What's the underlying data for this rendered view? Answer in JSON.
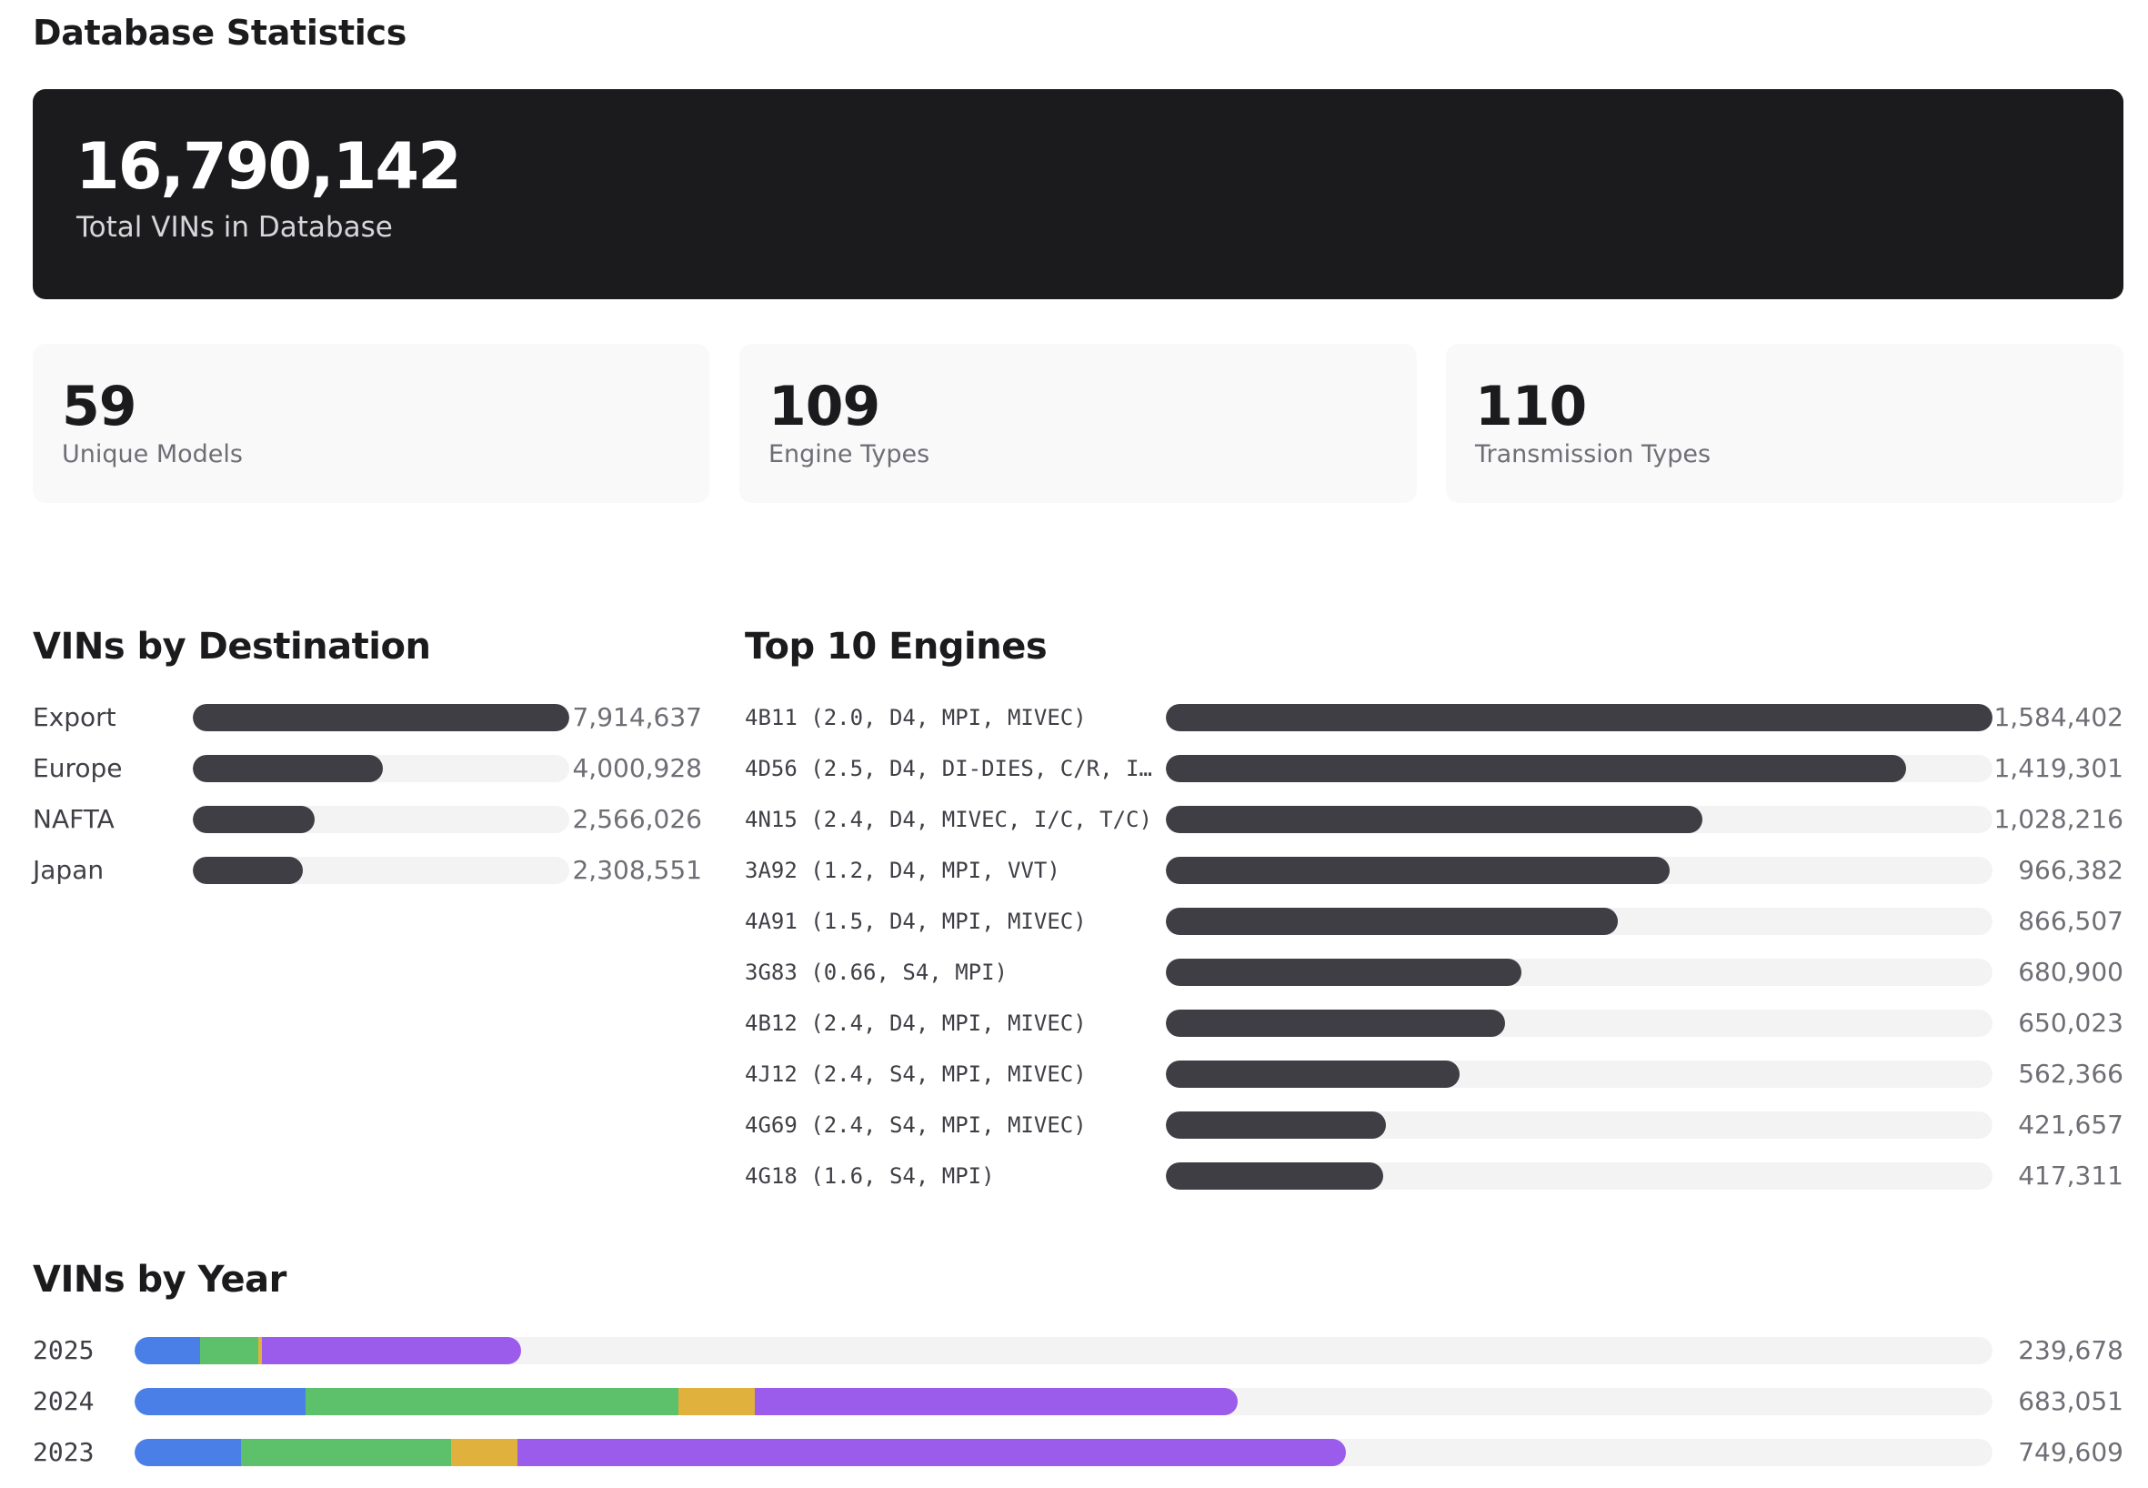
{
  "page": {
    "title": "Database Statistics"
  },
  "hero": {
    "value": "16,790,142",
    "label": "Total VINs in Database"
  },
  "stats": [
    {
      "value": "59",
      "label": "Unique Models"
    },
    {
      "value": "109",
      "label": "Engine Types"
    },
    {
      "value": "110",
      "label": "Transmission Types"
    }
  ],
  "destination": {
    "title": "VINs by Destination",
    "rows": [
      {
        "label": "Export",
        "value": "7,914,637"
      },
      {
        "label": "Europe",
        "value": "4,000,928"
      },
      {
        "label": "NAFTA",
        "value": "2,566,026"
      },
      {
        "label": "Japan",
        "value": "2,308,551"
      }
    ]
  },
  "engines": {
    "title": "Top 10 Engines",
    "rows": [
      {
        "label": "4B11 (2.0, D4, MPI, MIVEC)",
        "value": "1,584,402"
      },
      {
        "label": "4D56 (2.5, D4, DI-DIES, C/R, I…",
        "value": "1,419,301"
      },
      {
        "label": "4N15 (2.4, D4, MIVEC, I/C, T/C)",
        "value": "1,028,216"
      },
      {
        "label": "3A92 (1.2, D4, MPI, VVT)",
        "value": "966,382"
      },
      {
        "label": "4A91 (1.5, D4, MPI, MIVEC)",
        "value": "866,507"
      },
      {
        "label": "3G83 (0.66, S4, MPI)",
        "value": "680,900"
      },
      {
        "label": "4B12 (2.4, D4, MPI, MIVEC)",
        "value": "650,023"
      },
      {
        "label": "4J12 (2.4, S4, MPI, MIVEC)",
        "value": "562,366"
      },
      {
        "label": "4G69 (2.4, S4, MPI, MIVEC)",
        "value": "421,657"
      },
      {
        "label": "4G18 (1.6, S4, MPI)",
        "value": "417,311"
      }
    ]
  },
  "years": {
    "title": "VINs by Year",
    "segment_colors": [
      "#4a7fe8",
      "#5dc06a",
      "#e0b13c",
      "#9b5ceb"
    ],
    "rows": [
      {
        "label": "2025",
        "value": "239,678",
        "segments_pct": [
          3.54,
          3.1,
          0.22,
          13.93
        ]
      },
      {
        "label": "2024",
        "value": "683,051",
        "segments_pct": [
          9.21,
          20.04,
          4.13,
          26.01
        ]
      },
      {
        "label": "2023",
        "value": "749,609",
        "segments_pct": [
          5.75,
          11.27,
          3.61,
          44.58
        ]
      }
    ]
  },
  "colors": {
    "hero_bg": "#1b1b1d",
    "card_bg": "#f9f9fa",
    "bar_fill": "#3f3e45",
    "bar_track": "#f3f3f4",
    "text_primary": "#1b1b1d",
    "text_muted": "#6e6e75"
  },
  "chart_data": [
    {
      "type": "bar",
      "title": "VINs by Destination",
      "orientation": "horizontal",
      "categories": [
        "Export",
        "Europe",
        "NAFTA",
        "Japan"
      ],
      "values": [
        7914637,
        4000928,
        2566026,
        2308551
      ],
      "xlabel": "",
      "ylabel": "",
      "grid": false,
      "legend": null
    },
    {
      "type": "bar",
      "title": "Top 10 Engines",
      "orientation": "horizontal",
      "categories": [
        "4B11 (2.0, D4, MPI, MIVEC)",
        "4D56 (2.5, D4, DI-DIES, C/R, I…",
        "4N15 (2.4, D4, MIVEC, I/C, T/C)",
        "3A92 (1.2, D4, MPI, VVT)",
        "4A91 (1.5, D4, MPI, MIVEC)",
        "3G83 (0.66, S4, MPI)",
        "4B12 (2.4, D4, MPI, MIVEC)",
        "4J12 (2.4, S4, MPI, MIVEC)",
        "4G69 (2.4, S4, MPI, MIVEC)",
        "4G18 (1.6, S4, MPI)"
      ],
      "values": [
        1584402,
        1419301,
        1028216,
        966382,
        866507,
        680900,
        650023,
        562366,
        421657,
        417311
      ],
      "xlabel": "",
      "ylabel": "",
      "grid": false,
      "legend": null
    },
    {
      "type": "bar",
      "stacked": true,
      "title": "VINs by Year",
      "orientation": "horizontal",
      "categories": [
        "2025",
        "2024",
        "2023"
      ],
      "totals": [
        239678,
        683051,
        749609
      ],
      "series": [
        {
          "name": "segment-1 (blue)",
          "color": "#4a7fe8",
          "values": [
            40800,
            106100,
            66200
          ]
        },
        {
          "name": "segment-2 (green)",
          "color": "#5dc06a",
          "values": [
            35700,
            230900,
            129800
          ]
        },
        {
          "name": "segment-3 (yellow)",
          "color": "#e0b13c",
          "values": [
            2500,
            47600,
            41600
          ]
        },
        {
          "name": "segment-4 (purple)",
          "color": "#9b5ceb",
          "values": [
            160678,
            298451,
            512009
          ]
        }
      ],
      "xlabel": "",
      "ylabel": "",
      "grid": false,
      "legend": null
    }
  ]
}
